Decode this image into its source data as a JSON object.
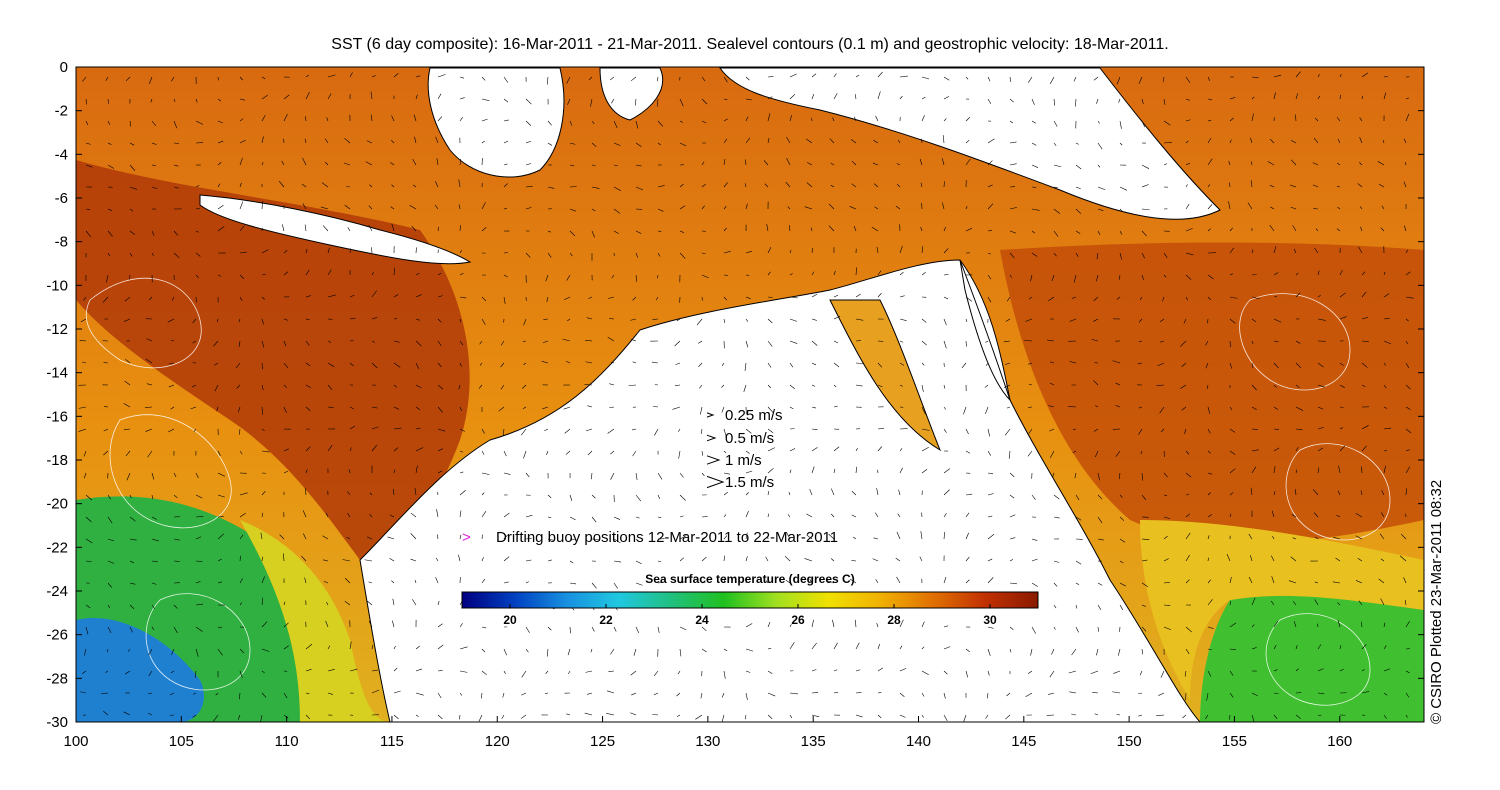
{
  "title": "SST (6 day composite): 16-Mar-2011 - 21-Mar-2011. Sealevel contours (0.1 m) and geostrophic velocity: 18-Mar-2011.",
  "credit": "© CSIRO Plotted 23-Mar-2011 08:32",
  "axes": {
    "x_ticks": [
      "100",
      "105",
      "110",
      "115",
      "120",
      "125",
      "130",
      "135",
      "140",
      "145",
      "150",
      "155",
      "160"
    ],
    "y_ticks": [
      "0",
      "-2",
      "-4",
      "-6",
      "-8",
      "-10",
      "-12",
      "-14",
      "-16",
      "-18",
      "-20",
      "-22",
      "-24",
      "-26",
      "-28",
      "-30"
    ],
    "xlim": [
      100,
      164
    ],
    "ylim": [
      -30,
      0
    ]
  },
  "velocity_legend": [
    {
      "label": "0.25 m/s",
      "speed": 0.25
    },
    {
      "label": "0.5 m/s",
      "speed": 0.5
    },
    {
      "label": "1 m/s",
      "speed": 1
    },
    {
      "label": "1.5 m/s",
      "speed": 1.5
    }
  ],
  "buoy_legend": {
    "symbol": ">",
    "label": "Drifting buoy positions 12-Mar-2011 to 22-Mar-2011",
    "color": "#e020e0"
  },
  "colorbar": {
    "title": "Sea surface temperature (degrees C)",
    "min": 19,
    "max": 31,
    "ticks": [
      "20",
      "22",
      "24",
      "26",
      "28",
      "30"
    ],
    "colors": [
      "#000080",
      "#0040c0",
      "#1890e0",
      "#20c8e0",
      "#20c080",
      "#20c020",
      "#a0e020",
      "#f0e000",
      "#f0b000",
      "#e07000",
      "#c03000",
      "#8a1a00"
    ]
  },
  "colors": {
    "land": "#ffffff",
    "coast": "#000000",
    "contour": "#ffffff"
  }
}
